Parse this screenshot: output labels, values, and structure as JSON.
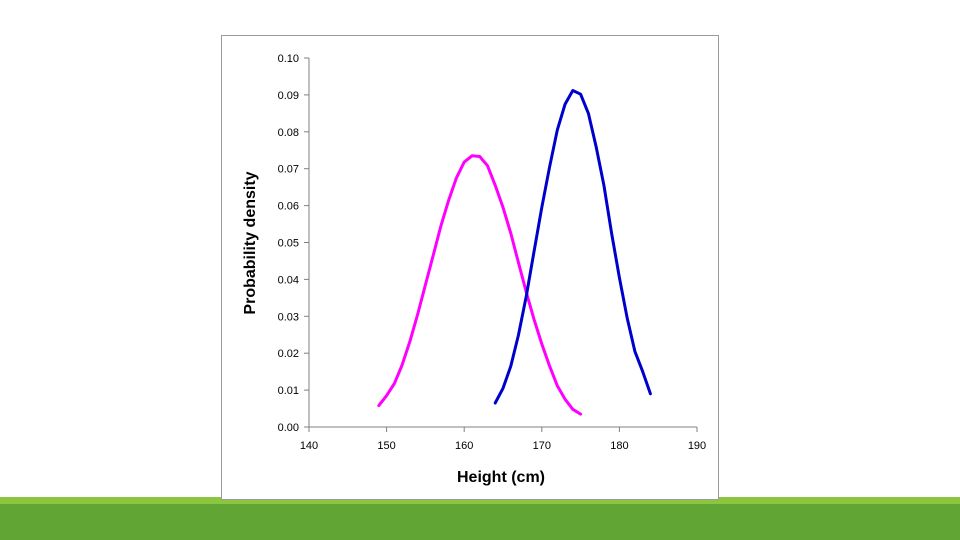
{
  "colors": {
    "band_light": "#8cc63f",
    "band_dark": "#61a534",
    "series_magenta": "#ff00ff",
    "series_blue": "#0000cc"
  },
  "chart_data": {
    "type": "line",
    "title": "",
    "xlabel": "Height (cm)",
    "ylabel": "Probability density",
    "xlim": [
      140,
      190
    ],
    "ylim": [
      0,
      0.1
    ],
    "xticks": [
      "140",
      "150",
      "160",
      "170",
      "180",
      "190"
    ],
    "yticks": [
      "0.00",
      "0.01",
      "0.02",
      "0.03",
      "0.04",
      "0.05",
      "0.06",
      "0.07",
      "0.08",
      "0.09",
      "0.10"
    ],
    "grid": false,
    "legend": "none",
    "series": [
      {
        "color": "#ff00ff",
        "x": [
          149,
          150,
          151,
          152,
          153,
          154,
          155,
          156,
          157,
          158,
          159,
          160,
          161,
          162,
          163,
          164,
          165,
          166,
          167,
          168,
          169,
          170,
          171,
          172,
          173,
          174,
          175
        ],
        "y": [
          0.0058,
          0.0085,
          0.0118,
          0.0168,
          0.0232,
          0.0305,
          0.0385,
          0.0465,
          0.0545,
          0.0615,
          0.0675,
          0.0718,
          0.0735,
          0.0733,
          0.0708,
          0.0655,
          0.0595,
          0.0525,
          0.0445,
          0.0365,
          0.0292,
          0.0225,
          0.0165,
          0.0112,
          0.0075,
          0.0048,
          0.0035
        ]
      },
      {
        "color": "#0000cc",
        "x": [
          164,
          165,
          166,
          167,
          168,
          169,
          170,
          171,
          172,
          173,
          174,
          175,
          176,
          177,
          178,
          179,
          180,
          181,
          182,
          183,
          184
        ],
        "y": [
          0.0065,
          0.0105,
          0.0165,
          0.025,
          0.0355,
          0.0475,
          0.0595,
          0.0705,
          0.0805,
          0.0875,
          0.0912,
          0.0902,
          0.085,
          0.076,
          0.0655,
          0.0525,
          0.0405,
          0.0295,
          0.0205,
          0.015,
          0.009
        ]
      }
    ]
  }
}
